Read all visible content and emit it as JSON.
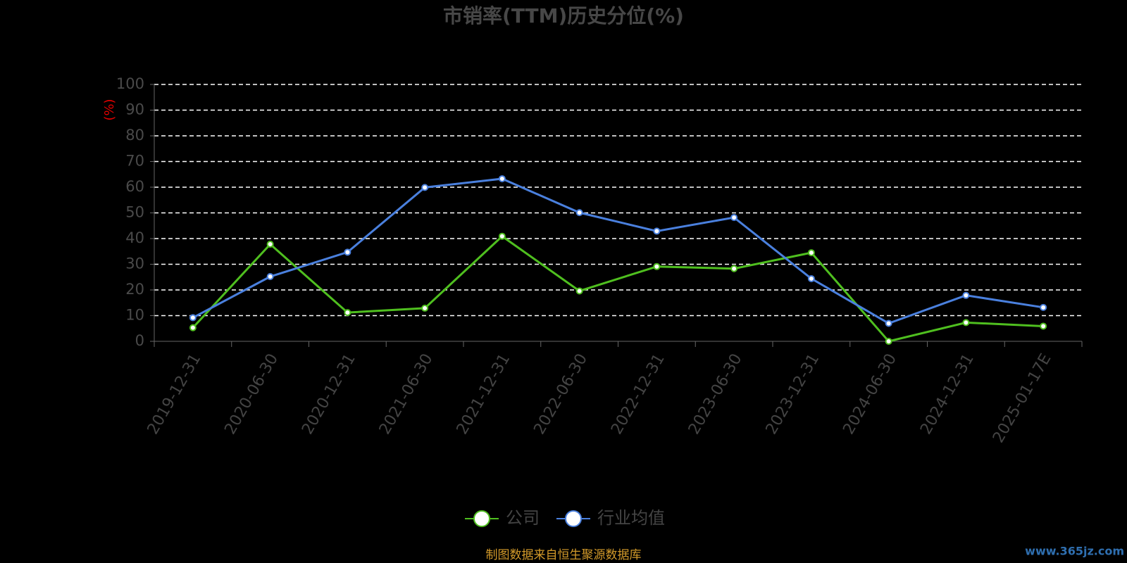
{
  "chart_data": {
    "type": "line",
    "title": "市销率(TTM)历史分位(%)",
    "y_label": "(%)",
    "categories": [
      "2019-12-31",
      "2020-06-30",
      "2020-12-31",
      "2021-06-30",
      "2021-12-31",
      "2022-06-30",
      "2022-12-31",
      "2023-06-30",
      "2023-12-31",
      "2024-06-30",
      "2024-12-31",
      "2025-01-17E"
    ],
    "series": [
      {
        "name": "公司",
        "color": "#4fbf1f",
        "values": [
          5.3,
          37.8,
          11.2,
          12.9,
          40.9,
          19.6,
          29.1,
          28.3,
          34.5,
          0,
          7.3,
          5.9
        ]
      },
      {
        "name": "行业均值",
        "color": "#4a80de",
        "values": [
          9.2,
          25.2,
          34.7,
          59.9,
          63.3,
          50.1,
          42.9,
          48.2,
          24.4,
          7.0,
          17.9,
          13.2
        ]
      }
    ],
    "ylim": [
      0,
      100
    ],
    "yticks": [
      0,
      10,
      20,
      30,
      40,
      50,
      60,
      70,
      80,
      90,
      100
    ],
    "grid": true,
    "legend": "bottom",
    "source": "制图数据来自恒生聚源数据库",
    "watermark": "www.365jz.com"
  }
}
